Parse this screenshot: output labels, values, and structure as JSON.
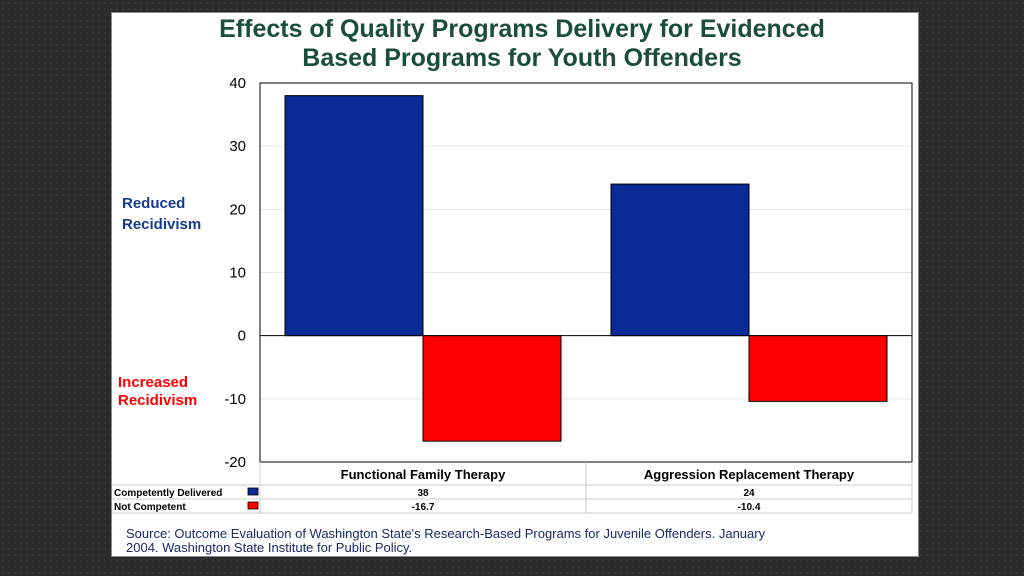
{
  "chart_data": {
    "type": "bar",
    "title_lines": [
      "Effects of Quality Programs Delivery for Evidenced",
      "Based Programs for Youth Offenders"
    ],
    "categories": [
      "Functional Family Therapy",
      "Aggression Replacement Therapy"
    ],
    "series": [
      {
        "name": "Competently Delivered",
        "values": [
          38,
          24
        ],
        "value_labels": [
          "38",
          "24"
        ],
        "color": "#0a2a96"
      },
      {
        "name": "Not Competent",
        "values": [
          -16.7,
          -10.4
        ],
        "value_labels": [
          "-16.7",
          "-10.4"
        ],
        "color": "#ff0000"
      }
    ],
    "ylim": [
      -20,
      40
    ],
    "yticks": [
      40,
      30,
      20,
      10,
      0,
      -10,
      -20
    ],
    "ylabel_positive": [
      "Reduced",
      "Recidivism"
    ],
    "ylabel_negative": [
      "Increased",
      "Recidivism"
    ],
    "legend": "data table below chart",
    "source_lines": [
      "Source: Outcome Evaluation of Washington State's Research-Based Programs for Juvenile Offenders. January",
      "2004. Washington State Institute for Public Policy."
    ]
  },
  "colors": {
    "title": "#1a4d3a",
    "positive_label": "#1a3a8f",
    "negative_label": "#ff0000"
  }
}
